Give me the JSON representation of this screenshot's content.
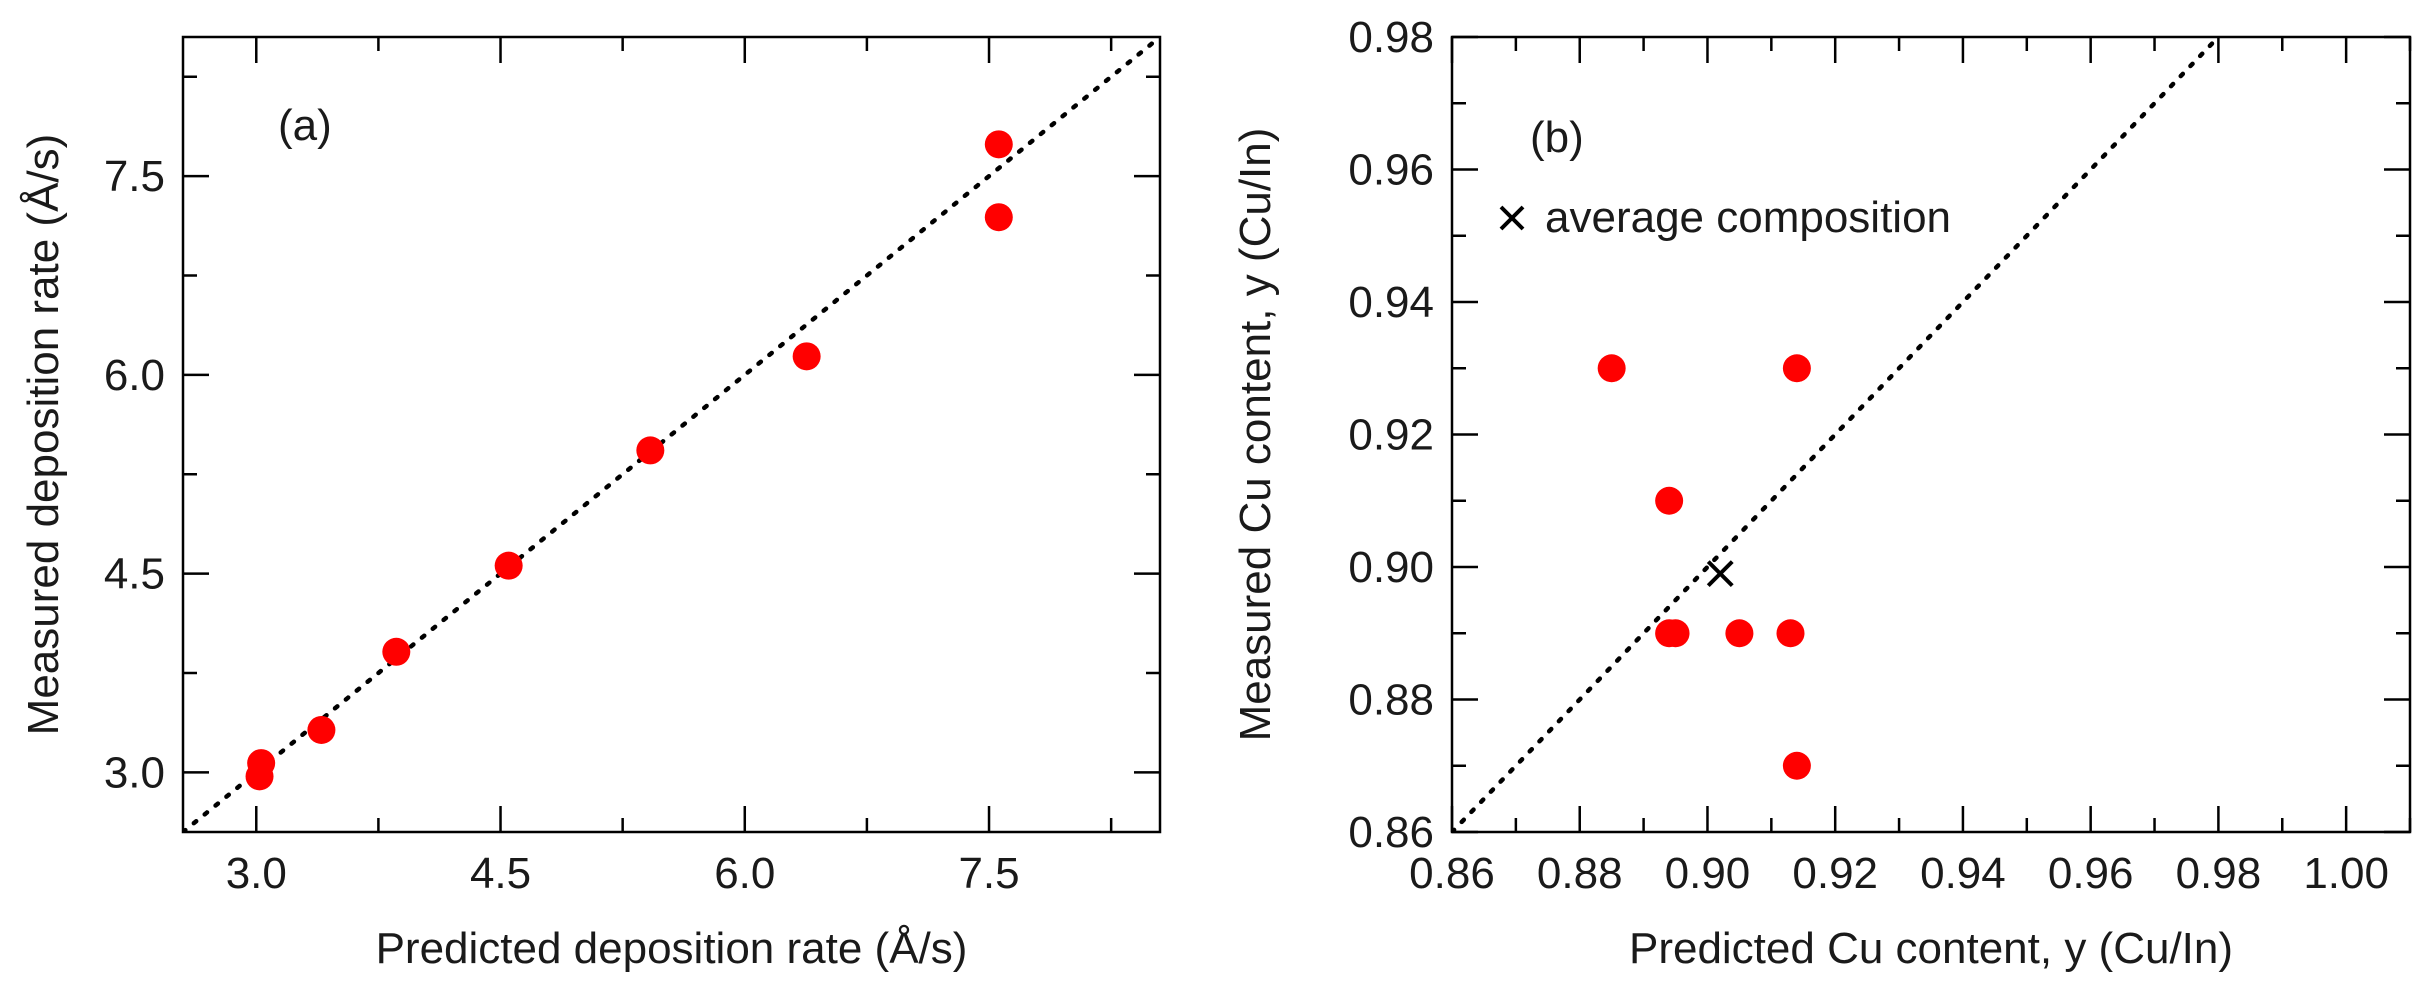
{
  "chart_data": [
    {
      "type": "scatter",
      "panel_label": "(a)",
      "xlabel": "Predicted deposition rate (Å/s)",
      "ylabel": "Measured deposition rate (Å/s)",
      "xlim": [
        2.55,
        8.55
      ],
      "ylim": [
        2.55,
        8.55
      ],
      "xticks": [
        3.0,
        4.5,
        6.0,
        7.5
      ],
      "xtick_labels": [
        "3.0",
        "4.5",
        "6.0",
        "7.5"
      ],
      "yticks": [
        3.0,
        4.5,
        6.0,
        7.5
      ],
      "ytick_labels": [
        "3.0",
        "4.5",
        "6.0",
        "7.5"
      ],
      "grid": false,
      "reference_line": "y = x (dotted)",
      "series": [
        {
          "color": "#ff0000",
          "marker": "circle",
          "points": [
            {
              "x": 3.02,
              "y": 2.97
            },
            {
              "x": 3.03,
              "y": 3.07
            },
            {
              "x": 3.4,
              "y": 3.32
            },
            {
              "x": 3.86,
              "y": 3.91
            },
            {
              "x": 4.55,
              "y": 4.56
            },
            {
              "x": 5.42,
              "y": 5.43
            },
            {
              "x": 6.38,
              "y": 6.14
            },
            {
              "x": 7.56,
              "y": 7.74
            },
            {
              "x": 7.56,
              "y": 7.19
            }
          ]
        }
      ]
    },
    {
      "type": "scatter",
      "panel_label": "(b)",
      "xlabel": "Predicted Cu content, y (Cu/In)",
      "ylabel": "Measured Cu content, y (Cu/In)",
      "xlim": [
        0.86,
        1.01
      ],
      "ylim": [
        0.86,
        0.98
      ],
      "xticks": [
        0.86,
        0.88,
        0.9,
        0.92,
        0.94,
        0.96,
        0.98,
        1.0
      ],
      "xtick_labels": [
        "0.86",
        "0.88",
        "0.90",
        "0.92",
        "0.94",
        "0.96",
        "0.98",
        "1.00"
      ],
      "yticks": [
        0.86,
        0.88,
        0.9,
        0.92,
        0.94,
        0.96,
        0.98
      ],
      "ytick_labels": [
        "0.86",
        "0.88",
        "0.90",
        "0.92",
        "0.94",
        "0.96",
        "0.98"
      ],
      "grid": false,
      "reference_line": "y = x (dotted)",
      "legend": {
        "marker": "×",
        "label": "average composition",
        "position": "top-left"
      },
      "series": [
        {
          "color": "#ff0000",
          "marker": "circle",
          "points": [
            {
              "x": 0.885,
              "y": 0.93
            },
            {
              "x": 0.914,
              "y": 0.93
            },
            {
              "x": 0.894,
              "y": 0.91
            },
            {
              "x": 0.894,
              "y": 0.89
            },
            {
              "x": 0.895,
              "y": 0.89
            },
            {
              "x": 0.905,
              "y": 0.89
            },
            {
              "x": 0.913,
              "y": 0.89
            },
            {
              "x": 0.914,
              "y": 0.87
            }
          ]
        },
        {
          "name": "average composition",
          "color": "#000000",
          "marker": "x",
          "points": [
            {
              "x": 0.902,
              "y": 0.899
            }
          ]
        }
      ]
    }
  ]
}
